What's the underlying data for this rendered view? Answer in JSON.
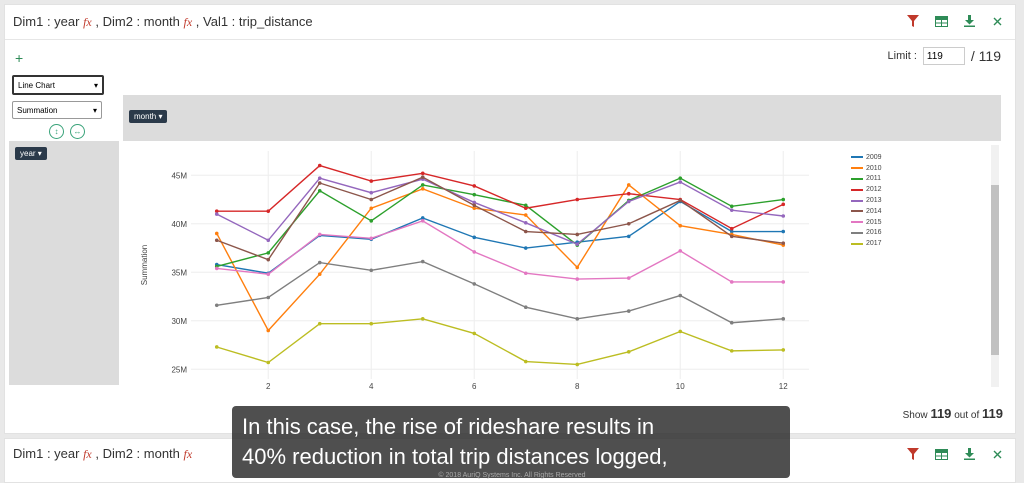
{
  "panel1": {
    "title_parts": {
      "d1": "Dim1 : year ",
      "d2": " , Dim2 : month ",
      "v1": " , Val1 : trip_distance"
    },
    "fx": "fx",
    "add_label": "+",
    "limit_label": "Limit :",
    "limit_value": "119",
    "limit_total": "/ 119",
    "chart_type": "Line Chart",
    "aggregation": "Summation",
    "col_chip": "month",
    "row_chip": "year",
    "show_pre": "Show",
    "show_count": "119",
    "show_mid": "out of",
    "show_total": "119"
  },
  "panel2": {
    "title_parts": {
      "d1": "Dim1 : year ",
      "d2": " , Dim2 : month "
    }
  },
  "icons": [
    "filter-icon",
    "table-icon",
    "download-icon",
    "close-icon"
  ],
  "colors": {
    "accent_red": "#c0392b",
    "accent_green": "#3aa37a"
  },
  "subtitle": {
    "line1": "In this case, the rise of rideshare results in",
    "line2": "40% reduction in total trip distances logged,"
  },
  "copyright": "© 2018 AuriQ Systems Inc. All Rights Reserved",
  "chart_data": {
    "type": "line",
    "ylabel": "Summation",
    "xlabel": "",
    "x": [
      1,
      2,
      3,
      4,
      5,
      6,
      7,
      8,
      9,
      10,
      11,
      12
    ],
    "xticks": [
      2,
      4,
      6,
      8,
      10,
      12
    ],
    "yticks": [
      25,
      30,
      35,
      40,
      45
    ],
    "ytick_labels": [
      "25M",
      "30M",
      "35M",
      "40M",
      "45M"
    ],
    "ylim": [
      24,
      47.5
    ],
    "xlim": [
      0.5,
      12.5
    ],
    "grid": true,
    "legend_position": "top-right",
    "series": [
      {
        "name": "2009",
        "color": "#1f77b4",
        "values": [
          35.8,
          34.9,
          38.8,
          38.4,
          40.6,
          38.6,
          37.5,
          38.1,
          38.7,
          42.3,
          39.2,
          39.2
        ]
      },
      {
        "name": "2010",
        "color": "#ff7f0e",
        "values": [
          39.0,
          29.0,
          34.8,
          41.6,
          43.6,
          41.6,
          40.9,
          35.5,
          44.0,
          39.8,
          38.9,
          37.8
        ]
      },
      {
        "name": "2011",
        "color": "#2ca02c",
        "values": [
          35.6,
          37.0,
          43.4,
          40.3,
          44.0,
          43.0,
          41.9,
          37.8,
          42.4,
          44.7,
          41.8,
          42.5
        ]
      },
      {
        "name": "2012",
        "color": "#d62728",
        "values": [
          41.3,
          41.3,
          46.0,
          44.4,
          45.2,
          43.9,
          41.6,
          42.5,
          43.1,
          42.5,
          39.5,
          42.0
        ]
      },
      {
        "name": "2013",
        "color": "#9467bd",
        "values": [
          41.0,
          38.3,
          44.7,
          43.2,
          44.6,
          42.2,
          40.1,
          37.9,
          42.3,
          44.3,
          41.4,
          40.8
        ]
      },
      {
        "name": "2014",
        "color": "#8c564b",
        "values": [
          38.3,
          36.3,
          44.2,
          42.5,
          44.8,
          41.9,
          39.2,
          38.9,
          40.0,
          42.4,
          38.7,
          38.0
        ]
      },
      {
        "name": "2015",
        "color": "#e377c2",
        "values": [
          35.4,
          34.8,
          38.9,
          38.5,
          40.3,
          37.1,
          34.9,
          34.3,
          34.4,
          37.2,
          34.0,
          34.0
        ]
      },
      {
        "name": "2016",
        "color": "#7f7f7f",
        "values": [
          31.6,
          32.4,
          36.0,
          35.2,
          36.1,
          33.8,
          31.4,
          30.2,
          31.0,
          32.6,
          29.8,
          30.2
        ]
      },
      {
        "name": "2017",
        "color": "#bcbd22",
        "values": [
          27.3,
          25.7,
          29.7,
          29.7,
          30.2,
          28.7,
          25.8,
          25.5,
          26.8,
          28.9,
          26.9,
          27.0
        ]
      }
    ]
  }
}
